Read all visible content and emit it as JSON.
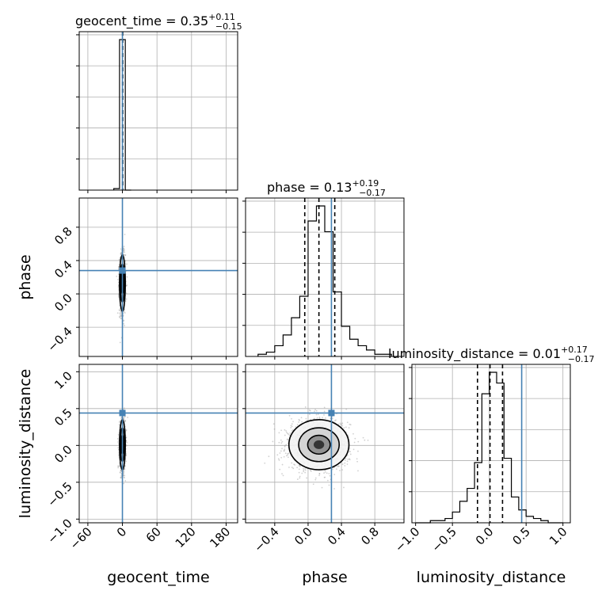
{
  "chart_data": {
    "type": "corner",
    "parameters": [
      "geocent_time",
      "phase",
      "luminosity_distance"
    ],
    "axis_labels": [
      "geocent_time",
      "phase",
      "luminosity_distance"
    ],
    "truth_color": "#4682b4",
    "grid": true,
    "titles": [
      {
        "param": "geocent_time",
        "text": "geocent_time = 0.35",
        "median": 0.35,
        "plus": "+0.11",
        "minus": "−0.15"
      },
      {
        "param": "phase",
        "text": "phase = 0.13",
        "median": 0.13,
        "plus": "+0.19",
        "minus": "−0.17"
      },
      {
        "param": "luminosity_distance",
        "text": "luminosity_distance = 0.01",
        "median": 0.01,
        "plus": "+0.17",
        "minus": "−0.17"
      }
    ],
    "ranges": {
      "geocent_time": [
        -75,
        200
      ],
      "phase": [
        -0.75,
        1.15
      ],
      "luminosity_distance": [
        -1.05,
        1.1
      ]
    },
    "ticks": {
      "geocent_time": {
        "values": [
          -60,
          0,
          60,
          120,
          180
        ],
        "labels": [
          "−60",
          "0",
          "60",
          "120",
          "180"
        ]
      },
      "phase": {
        "values": [
          -0.4,
          0.0,
          0.4,
          0.8
        ],
        "labels": [
          "−0.4",
          "0.0",
          "0.4",
          "0.8"
        ]
      },
      "phase_row": {
        "values": [
          -0.4,
          0.0,
          0.4,
          0.8
        ],
        "labels": [
          "−0.4",
          "0.0",
          "0.4",
          "0.8"
        ]
      },
      "luminosity_distance": {
        "values": [
          -1.0,
          -0.5,
          0.0,
          0.5,
          1.0
        ],
        "labels": [
          "−1.0",
          "−0.5",
          "0.0",
          "0.5",
          "1.0"
        ]
      }
    },
    "truths": {
      "geocent_time": 0.0,
      "phase": 0.28,
      "luminosity_distance": 0.44
    },
    "quantile_lines": {
      "geocent_time": [
        0.2,
        0.35,
        0.46
      ],
      "phase": [
        -0.04,
        0.13,
        0.32
      ],
      "luminosity_distance": [
        -0.16,
        0.01,
        0.18
      ]
    },
    "histograms": {
      "geocent_time": {
        "bin_edges": [
          -15,
          -5,
          5,
          15
        ],
        "counts": [
          1,
          100,
          0
        ]
      },
      "phase": {
        "bin_edges": [
          -0.6,
          -0.5,
          -0.4,
          -0.3,
          -0.2,
          -0.1,
          0.0,
          0.1,
          0.2,
          0.3,
          0.4,
          0.5,
          0.6,
          0.7,
          0.8,
          0.9,
          1.0
        ],
        "counts": [
          1,
          2,
          5,
          10,
          18,
          28,
          63,
          70,
          58,
          30,
          14,
          8,
          5,
          3,
          1,
          1
        ]
      },
      "luminosity_distance": {
        "bin_edges": [
          -1.0,
          -0.9,
          -0.8,
          -0.7,
          -0.6,
          -0.5,
          -0.4,
          -0.3,
          -0.2,
          -0.1,
          0.0,
          0.1,
          0.2,
          0.3,
          0.4,
          0.5,
          0.6,
          0.7,
          0.8,
          0.9,
          1.0
        ],
        "counts": [
          0,
          0,
          1,
          1,
          2,
          5,
          10,
          16,
          28,
          60,
          70,
          65,
          30,
          12,
          6,
          3,
          2,
          1,
          0,
          0
        ]
      }
    },
    "scatter_2d": {
      "phase_vs_geocent_time": {
        "x_center": 0,
        "x_spread": 2.5,
        "y_center": 0.13,
        "y_spread": 0.17
      },
      "luminosity_distance_vs_geocent_time": {
        "x_center": 0,
        "x_spread": 2.5,
        "y_center": 0.01,
        "y_spread": 0.17
      },
      "luminosity_distance_vs_phase": {
        "x_center": 0.13,
        "x_spread": 0.18,
        "y_center": 0.01,
        "y_spread": 0.17
      }
    }
  }
}
